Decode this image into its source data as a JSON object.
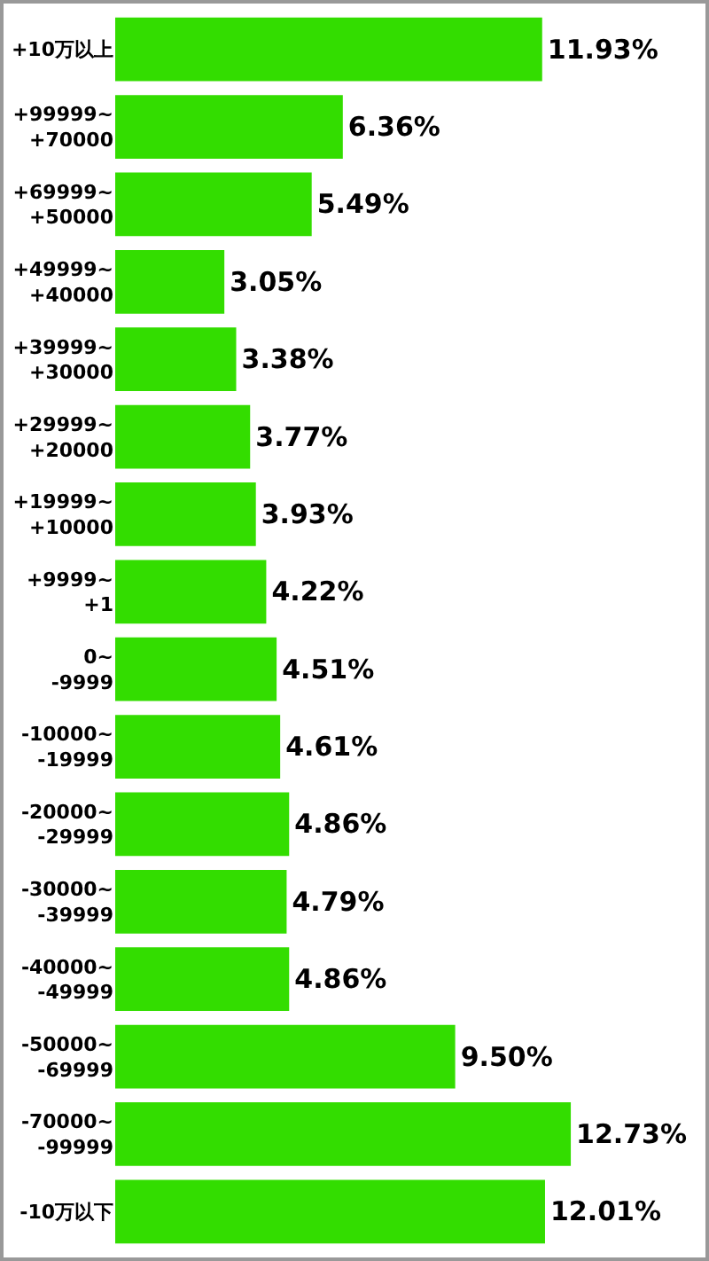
{
  "chart_data": {
    "type": "bar",
    "orientation": "horizontal",
    "categories": [
      "+10万以上",
      "+99999~\n+70000",
      "+69999~\n+50000",
      "+49999~\n+40000",
      "+39999~\n+30000",
      "+29999~\n+20000",
      "+19999~\n+10000",
      "+9999~\n+1",
      "0~\n-9999",
      "-10000~\n-19999",
      "-20000~\n-29999",
      "-30000~\n-39999",
      "-40000~\n-49999",
      "-50000~\n-69999",
      "-70000~\n-99999",
      "-10万以下"
    ],
    "values": [
      11.93,
      6.36,
      5.49,
      3.05,
      3.38,
      3.77,
      3.93,
      4.22,
      4.51,
      4.61,
      4.86,
      4.79,
      4.86,
      9.5,
      12.73,
      12.01
    ],
    "value_labels": [
      "11.93%",
      "6.36%",
      "5.49%",
      "3.05%",
      "3.38%",
      "3.77%",
      "3.93%",
      "4.22%",
      "4.51%",
      "4.61%",
      "4.86%",
      "4.79%",
      "4.86%",
      "9.50%",
      "12.73%",
      "12.01%"
    ],
    "color": "#33dd00",
    "tick_labels": "y",
    "grid": false,
    "legend": false
  }
}
